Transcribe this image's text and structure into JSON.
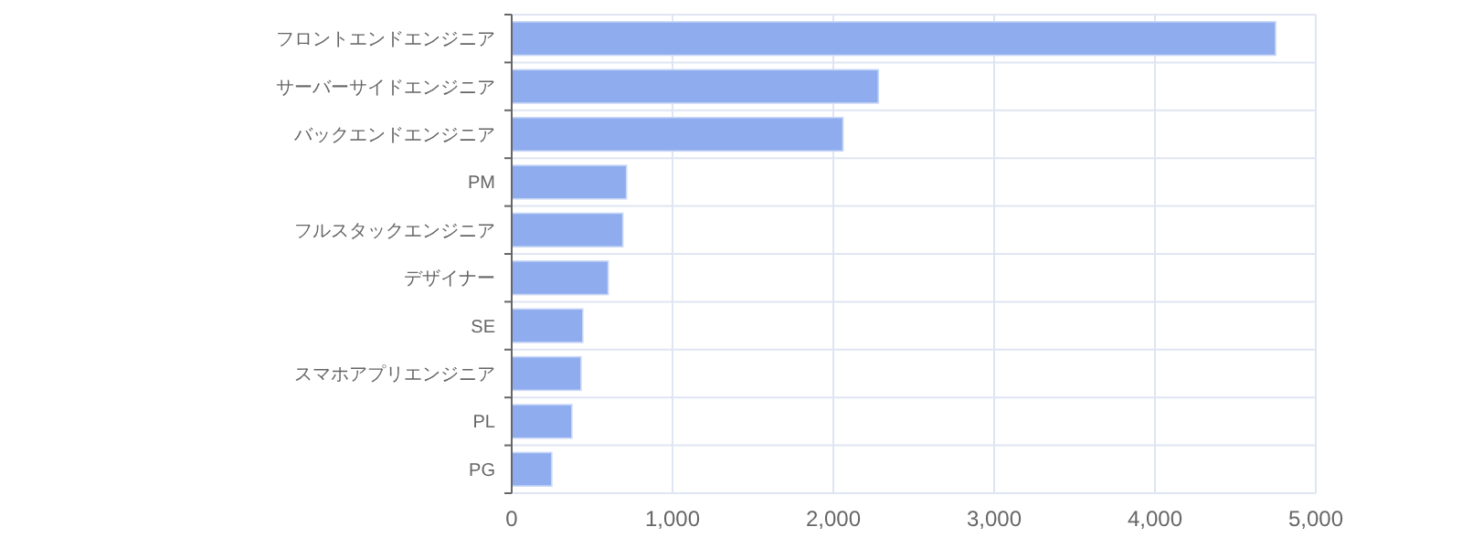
{
  "chart_data": {
    "type": "bar",
    "orientation": "horizontal",
    "categories": [
      "フロントエンドエンジニア",
      "サーバーサイドエンジニア",
      "バックエンドエンジニア",
      "PM",
      "フルスタックエンジニア",
      "デザイナー",
      "SE",
      "スマホアプリエンジニア",
      "PL",
      "PG"
    ],
    "values": [
      4750,
      2280,
      2060,
      714,
      691,
      600,
      442,
      431,
      374,
      249
    ],
    "color": "#8fadee",
    "xlim": [
      0,
      5000
    ],
    "xticks": [
      {
        "value": 0,
        "label": "0"
      },
      {
        "value": 1000,
        "label": "1,000"
      },
      {
        "value": 2000,
        "label": "2,000"
      },
      {
        "value": 3000,
        "label": "3,000"
      },
      {
        "value": 4000,
        "label": "4,000"
      },
      {
        "value": 5000,
        "label": "5,000"
      }
    ],
    "grid": true
  }
}
